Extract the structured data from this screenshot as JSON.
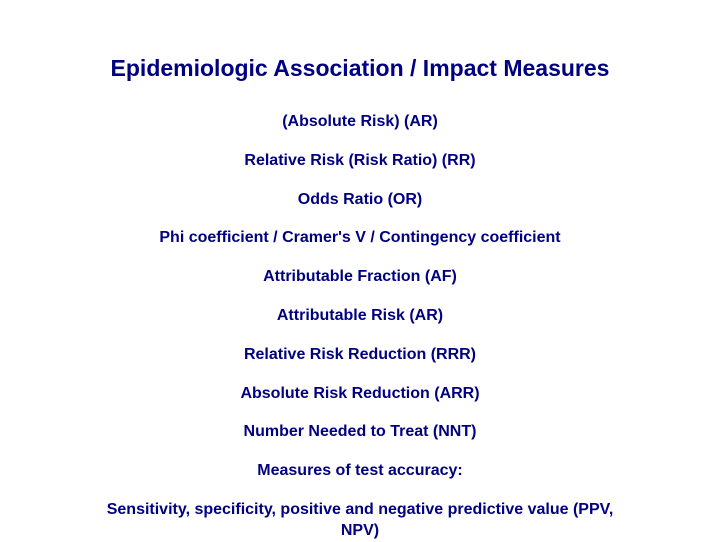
{
  "title": "Epidemiologic Association / Impact Measures",
  "items": [
    "(Absolute Risk) (AR)",
    "Relative Risk (Risk Ratio) (RR)",
    "Odds Ratio (OR)",
    "Phi coefficient / Cramer's V / Contingency coefficient",
    "Attributable Fraction (AF)",
    "Attributable Risk (AR)",
    "Relative Risk Reduction (RRR)",
    "Absolute Risk Reduction (ARR)",
    "Number Needed to Treat (NNT)",
    "Measures of test accuracy:",
    "Sensitivity, specificity, positive and negative predictive value (PPV, NPV)"
  ],
  "colors": {
    "text": "#000080",
    "background": "#ffffff"
  },
  "title_fontsize": 23,
  "item_fontsize": 16
}
